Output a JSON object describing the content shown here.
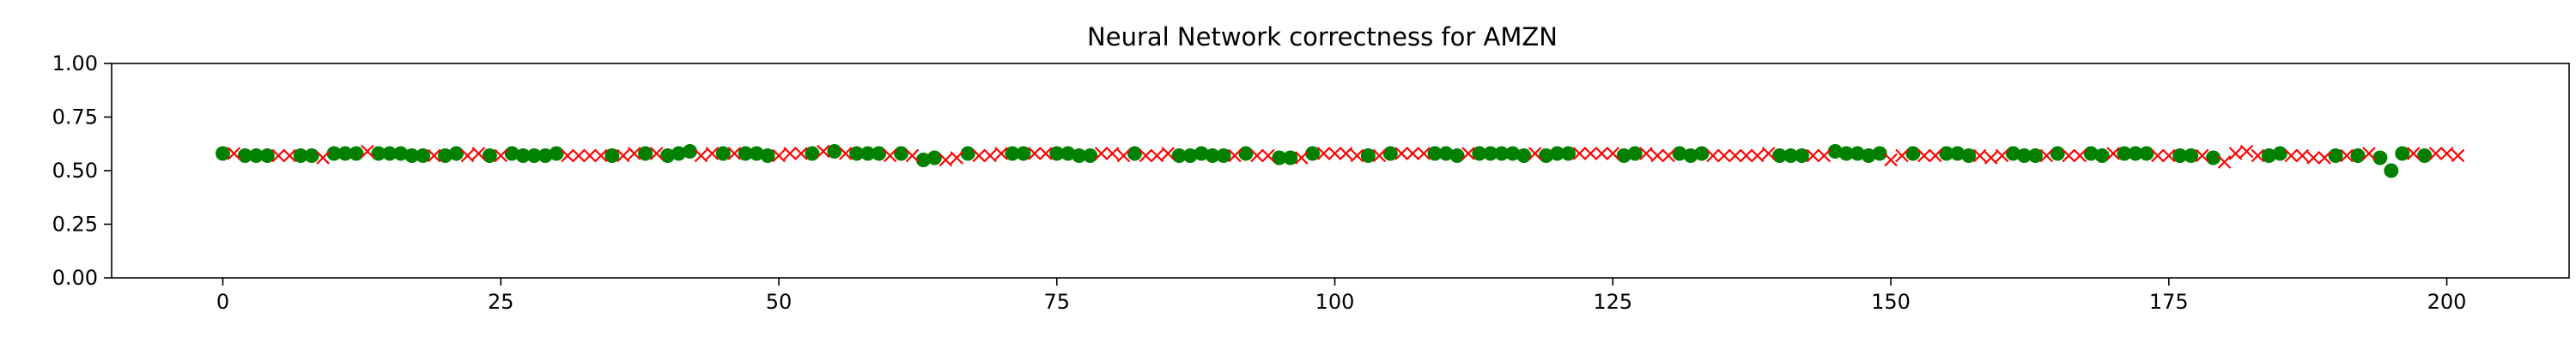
{
  "chart_data": {
    "type": "scatter",
    "title": "Neural Network correctness for AMZN",
    "xlabel": "",
    "ylabel": "",
    "xlim": [
      -10,
      211
    ],
    "ylim": [
      0,
      1
    ],
    "x_ticks": [
      0,
      25,
      50,
      75,
      100,
      125,
      150,
      175,
      200
    ],
    "y_ticks": [
      0.0,
      0.25,
      0.5,
      0.75,
      1.0
    ],
    "y_tick_labels": [
      "0.00",
      "0.25",
      "0.50",
      "0.75",
      "1.00"
    ],
    "grid": false,
    "colors": {
      "correct": "#008000",
      "incorrect": "#ff0000"
    },
    "series": [
      {
        "marker": "circle",
        "color": "#008000",
        "points": [
          [
            0,
            0.58
          ],
          [
            2,
            0.57
          ],
          [
            3,
            0.57
          ],
          [
            4,
            0.57
          ],
          [
            7,
            0.57
          ],
          [
            8,
            0.57
          ],
          [
            10,
            0.58
          ],
          [
            11,
            0.58
          ],
          [
            12,
            0.58
          ],
          [
            14,
            0.58
          ],
          [
            15,
            0.58
          ],
          [
            16,
            0.58
          ],
          [
            17,
            0.57
          ],
          [
            18,
            0.57
          ],
          [
            20,
            0.57
          ],
          [
            21,
            0.58
          ],
          [
            24,
            0.57
          ],
          [
            26,
            0.58
          ],
          [
            27,
            0.57
          ],
          [
            28,
            0.57
          ],
          [
            29,
            0.57
          ],
          [
            30,
            0.58
          ],
          [
            35,
            0.57
          ],
          [
            38,
            0.58
          ],
          [
            40,
            0.57
          ],
          [
            41,
            0.58
          ],
          [
            42,
            0.59
          ],
          [
            45,
            0.58
          ],
          [
            47,
            0.58
          ],
          [
            48,
            0.58
          ],
          [
            49,
            0.57
          ],
          [
            53,
            0.58
          ],
          [
            55,
            0.59
          ],
          [
            57,
            0.58
          ],
          [
            58,
            0.58
          ],
          [
            59,
            0.58
          ],
          [
            61,
            0.58
          ],
          [
            63,
            0.55
          ],
          [
            64,
            0.56
          ],
          [
            67,
            0.58
          ],
          [
            71,
            0.58
          ],
          [
            72,
            0.58
          ],
          [
            75,
            0.58
          ],
          [
            76,
            0.58
          ],
          [
            77,
            0.57
          ],
          [
            78,
            0.57
          ],
          [
            82,
            0.58
          ],
          [
            86,
            0.57
          ],
          [
            87,
            0.57
          ],
          [
            88,
            0.58
          ],
          [
            89,
            0.57
          ],
          [
            90,
            0.57
          ],
          [
            92,
            0.58
          ],
          [
            95,
            0.56
          ],
          [
            96,
            0.56
          ],
          [
            98,
            0.58
          ],
          [
            103,
            0.57
          ],
          [
            105,
            0.58
          ],
          [
            109,
            0.58
          ],
          [
            110,
            0.58
          ],
          [
            111,
            0.57
          ],
          [
            113,
            0.58
          ],
          [
            114,
            0.58
          ],
          [
            115,
            0.58
          ],
          [
            116,
            0.58
          ],
          [
            117,
            0.57
          ],
          [
            119,
            0.57
          ],
          [
            120,
            0.58
          ],
          [
            121,
            0.58
          ],
          [
            126,
            0.57
          ],
          [
            127,
            0.58
          ],
          [
            131,
            0.58
          ],
          [
            132,
            0.57
          ],
          [
            133,
            0.58
          ],
          [
            140,
            0.57
          ],
          [
            141,
            0.57
          ],
          [
            142,
            0.57
          ],
          [
            145,
            0.59
          ],
          [
            146,
            0.58
          ],
          [
            147,
            0.58
          ],
          [
            148,
            0.57
          ],
          [
            149,
            0.58
          ],
          [
            152,
            0.58
          ],
          [
            155,
            0.58
          ],
          [
            156,
            0.58
          ],
          [
            157,
            0.57
          ],
          [
            161,
            0.58
          ],
          [
            162,
            0.57
          ],
          [
            163,
            0.57
          ],
          [
            165,
            0.58
          ],
          [
            168,
            0.58
          ],
          [
            169,
            0.57
          ],
          [
            171,
            0.58
          ],
          [
            172,
            0.58
          ],
          [
            173,
            0.58
          ],
          [
            176,
            0.57
          ],
          [
            177,
            0.57
          ],
          [
            179,
            0.56
          ],
          [
            184,
            0.57
          ],
          [
            185,
            0.58
          ],
          [
            190,
            0.57
          ],
          [
            192,
            0.57
          ],
          [
            194,
            0.56
          ],
          [
            195,
            0.5
          ],
          [
            196,
            0.58
          ],
          [
            198,
            0.57
          ]
        ]
      },
      {
        "marker": "x",
        "color": "#ff0000",
        "points": [
          [
            1,
            0.58
          ],
          [
            5,
            0.57
          ],
          [
            6,
            0.57
          ],
          [
            9,
            0.56
          ],
          [
            13,
            0.59
          ],
          [
            19,
            0.57
          ],
          [
            22,
            0.57
          ],
          [
            23,
            0.58
          ],
          [
            25,
            0.57
          ],
          [
            31,
            0.57
          ],
          [
            32,
            0.57
          ],
          [
            33,
            0.57
          ],
          [
            34,
            0.57
          ],
          [
            36,
            0.57
          ],
          [
            37,
            0.58
          ],
          [
            39,
            0.58
          ],
          [
            43,
            0.57
          ],
          [
            44,
            0.58
          ],
          [
            46,
            0.58
          ],
          [
            50,
            0.57
          ],
          [
            51,
            0.58
          ],
          [
            52,
            0.58
          ],
          [
            54,
            0.59
          ],
          [
            56,
            0.58
          ],
          [
            60,
            0.57
          ],
          [
            62,
            0.57
          ],
          [
            65,
            0.55
          ],
          [
            66,
            0.56
          ],
          [
            68,
            0.57
          ],
          [
            69,
            0.57
          ],
          [
            70,
            0.58
          ],
          [
            73,
            0.58
          ],
          [
            74,
            0.58
          ],
          [
            79,
            0.58
          ],
          [
            80,
            0.58
          ],
          [
            81,
            0.57
          ],
          [
            83,
            0.57
          ],
          [
            84,
            0.57
          ],
          [
            85,
            0.58
          ],
          [
            91,
            0.57
          ],
          [
            93,
            0.57
          ],
          [
            94,
            0.57
          ],
          [
            97,
            0.56
          ],
          [
            99,
            0.58
          ],
          [
            100,
            0.58
          ],
          [
            101,
            0.58
          ],
          [
            102,
            0.57
          ],
          [
            104,
            0.57
          ],
          [
            106,
            0.58
          ],
          [
            107,
            0.58
          ],
          [
            108,
            0.58
          ],
          [
            112,
            0.58
          ],
          [
            118,
            0.58
          ],
          [
            122,
            0.58
          ],
          [
            123,
            0.58
          ],
          [
            124,
            0.58
          ],
          [
            125,
            0.58
          ],
          [
            128,
            0.58
          ],
          [
            129,
            0.57
          ],
          [
            130,
            0.57
          ],
          [
            134,
            0.57
          ],
          [
            135,
            0.57
          ],
          [
            136,
            0.57
          ],
          [
            137,
            0.57
          ],
          [
            138,
            0.57
          ],
          [
            139,
            0.58
          ],
          [
            143,
            0.57
          ],
          [
            144,
            0.57
          ],
          [
            150,
            0.55
          ],
          [
            151,
            0.57
          ],
          [
            153,
            0.57
          ],
          [
            154,
            0.57
          ],
          [
            158,
            0.57
          ],
          [
            159,
            0.56
          ],
          [
            160,
            0.57
          ],
          [
            164,
            0.57
          ],
          [
            166,
            0.57
          ],
          [
            167,
            0.57
          ],
          [
            170,
            0.58
          ],
          [
            174,
            0.57
          ],
          [
            175,
            0.57
          ],
          [
            178,
            0.57
          ],
          [
            180,
            0.54
          ],
          [
            181,
            0.58
          ],
          [
            182,
            0.59
          ],
          [
            183,
            0.57
          ],
          [
            186,
            0.57
          ],
          [
            187,
            0.57
          ],
          [
            188,
            0.56
          ],
          [
            189,
            0.56
          ],
          [
            191,
            0.57
          ],
          [
            193,
            0.58
          ],
          [
            197,
            0.58
          ],
          [
            199,
            0.58
          ],
          [
            200,
            0.58
          ],
          [
            201,
            0.57
          ]
        ]
      }
    ]
  }
}
